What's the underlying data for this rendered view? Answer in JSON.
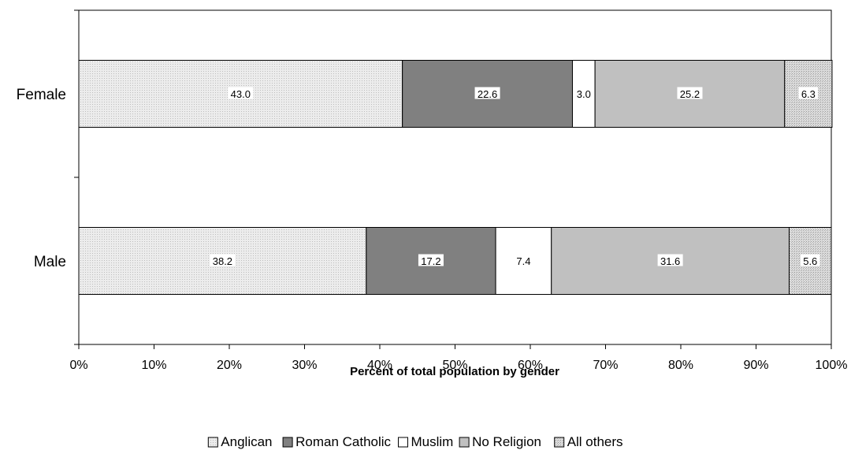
{
  "chart_data": {
    "type": "bar",
    "orientation": "horizontal",
    "stacked": true,
    "categories": [
      "Female",
      "Male"
    ],
    "series": [
      {
        "name": "Anglican",
        "values": [
          43.0,
          38.2
        ],
        "color": "#e6e6e6",
        "pattern": "dots"
      },
      {
        "name": "Roman Catholic",
        "values": [
          22.6,
          17.2
        ],
        "color": "#808080"
      },
      {
        "name": "Muslim",
        "values": [
          3.0,
          7.4
        ],
        "color": "#ffffff"
      },
      {
        "name": "No Religion",
        "values": [
          25.2,
          31.6
        ],
        "color": "#c0c0c0"
      },
      {
        "name": "All others",
        "values": [
          6.3,
          5.6
        ],
        "color": "#d4d4d4",
        "pattern": "dots"
      }
    ],
    "data_labels": [
      [
        "43.0",
        "22.6",
        "3.0",
        "25.2",
        "6.3"
      ],
      [
        "38.2",
        "17.2",
        "7.4",
        "31.6",
        "5.6"
      ]
    ],
    "xlabel": "Percent of total population by gender",
    "ylabel": "",
    "xlim": [
      0,
      100
    ],
    "x_ticks": [
      "0%",
      "10%",
      "20%",
      "30%",
      "40%",
      "50%",
      "60%",
      "70%",
      "80%",
      "90%",
      "100%"
    ],
    "legend_position": "bottom",
    "grid": false
  }
}
